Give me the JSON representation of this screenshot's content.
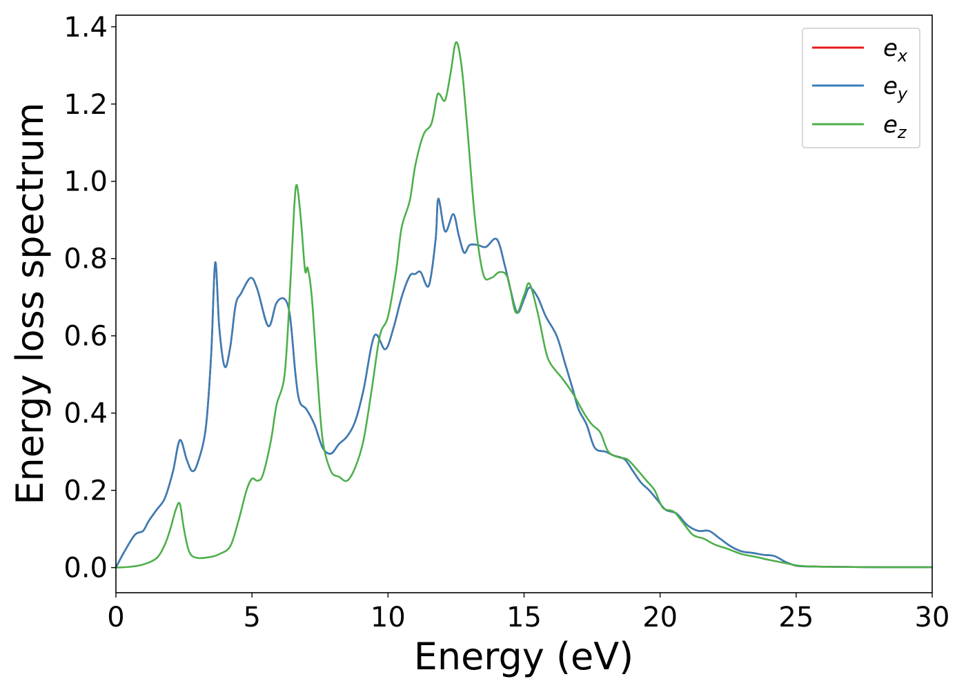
{
  "chart_data": {
    "type": "line",
    "title": "",
    "xlabel": "Energy (eV)",
    "ylabel": "Energy loss spectrum",
    "xlim": [
      0,
      30
    ],
    "ylim": [
      -0.065,
      1.43
    ],
    "xticks": [
      0,
      5,
      10,
      15,
      20,
      25,
      30
    ],
    "xtick_labels": [
      "0",
      "5",
      "10",
      "15",
      "20",
      "25",
      "30"
    ],
    "yticks": [
      0.0,
      0.2,
      0.4,
      0.6,
      0.8,
      1.0,
      1.2,
      1.4
    ],
    "ytick_labels": [
      "0.0",
      "0.2",
      "0.4",
      "0.6",
      "0.8",
      "1.0",
      "1.2",
      "1.4"
    ],
    "grid": false,
    "legend_position": "top-right",
    "series": [
      {
        "name": "e_x",
        "label_base": "e",
        "label_sub": "x",
        "color": "#e41a1c",
        "x": [
          0,
          0.3,
          0.7,
          1.0,
          1.2,
          1.5,
          1.8,
          2.1,
          2.35,
          2.6,
          2.8,
          3.0,
          3.3,
          3.5,
          3.65,
          3.8,
          4.0,
          4.2,
          4.4,
          4.6,
          4.95,
          5.2,
          5.6,
          5.9,
          6.2,
          6.4,
          6.6,
          6.75,
          7.0,
          7.3,
          7.6,
          7.9,
          8.2,
          8.5,
          8.8,
          9.1,
          9.5,
          9.9,
          10.2,
          10.5,
          10.8,
          11.0,
          11.2,
          11.5,
          11.75,
          11.85,
          12.1,
          12.4,
          12.6,
          12.8,
          13.0,
          13.3,
          13.6,
          14.0,
          14.3,
          14.5,
          14.75,
          15.0,
          15.2,
          15.5,
          15.8,
          16.2,
          16.5,
          16.8,
          17.0,
          17.3,
          17.6,
          18.0,
          18.3,
          18.7,
          19.0,
          19.3,
          19.6,
          19.9,
          20.2,
          20.6,
          21.0,
          21.4,
          21.8,
          22.2,
          22.6,
          23.0,
          23.4,
          23.8,
          24.2,
          24.6,
          25.0,
          25.5,
          26.5,
          28.0,
          30.0
        ],
        "y": [
          0.0,
          0.04,
          0.085,
          0.095,
          0.12,
          0.15,
          0.18,
          0.25,
          0.33,
          0.28,
          0.25,
          0.27,
          0.36,
          0.55,
          0.79,
          0.62,
          0.52,
          0.57,
          0.68,
          0.71,
          0.75,
          0.72,
          0.625,
          0.685,
          0.695,
          0.65,
          0.5,
          0.43,
          0.41,
          0.37,
          0.31,
          0.295,
          0.32,
          0.34,
          0.38,
          0.46,
          0.6,
          0.565,
          0.62,
          0.7,
          0.755,
          0.76,
          0.765,
          0.73,
          0.85,
          0.955,
          0.87,
          0.915,
          0.86,
          0.815,
          0.835,
          0.835,
          0.83,
          0.85,
          0.78,
          0.72,
          0.66,
          0.695,
          0.725,
          0.7,
          0.65,
          0.6,
          0.53,
          0.46,
          0.41,
          0.37,
          0.31,
          0.3,
          0.29,
          0.28,
          0.25,
          0.22,
          0.2,
          0.175,
          0.15,
          0.14,
          0.11,
          0.095,
          0.095,
          0.075,
          0.055,
          0.042,
          0.038,
          0.033,
          0.03,
          0.015,
          0.005,
          0.003,
          0.002,
          0.001,
          0.001
        ]
      },
      {
        "name": "e_y",
        "label_base": "e",
        "label_sub": "y",
        "color": "#377eb8",
        "x": [
          0,
          0.3,
          0.7,
          1.0,
          1.2,
          1.5,
          1.8,
          2.1,
          2.35,
          2.6,
          2.8,
          3.0,
          3.3,
          3.5,
          3.65,
          3.8,
          4.0,
          4.2,
          4.4,
          4.6,
          4.95,
          5.2,
          5.6,
          5.9,
          6.2,
          6.4,
          6.6,
          6.75,
          7.0,
          7.3,
          7.6,
          7.9,
          8.2,
          8.5,
          8.8,
          9.1,
          9.5,
          9.9,
          10.2,
          10.5,
          10.8,
          11.0,
          11.2,
          11.5,
          11.75,
          11.85,
          12.1,
          12.4,
          12.6,
          12.8,
          13.0,
          13.3,
          13.6,
          14.0,
          14.3,
          14.5,
          14.75,
          15.0,
          15.2,
          15.5,
          15.8,
          16.2,
          16.5,
          16.8,
          17.0,
          17.3,
          17.6,
          18.0,
          18.3,
          18.7,
          19.0,
          19.3,
          19.6,
          19.9,
          20.2,
          20.6,
          21.0,
          21.4,
          21.8,
          22.2,
          22.6,
          23.0,
          23.4,
          23.8,
          24.2,
          24.6,
          25.0,
          25.5,
          26.5,
          28.0,
          30.0
        ],
        "y": [
          0.0,
          0.04,
          0.085,
          0.095,
          0.12,
          0.15,
          0.18,
          0.25,
          0.33,
          0.28,
          0.25,
          0.27,
          0.36,
          0.55,
          0.79,
          0.62,
          0.52,
          0.57,
          0.68,
          0.71,
          0.75,
          0.72,
          0.625,
          0.685,
          0.695,
          0.65,
          0.5,
          0.43,
          0.41,
          0.37,
          0.31,
          0.295,
          0.32,
          0.34,
          0.38,
          0.46,
          0.6,
          0.565,
          0.62,
          0.7,
          0.755,
          0.76,
          0.765,
          0.73,
          0.85,
          0.955,
          0.87,
          0.915,
          0.86,
          0.815,
          0.835,
          0.835,
          0.83,
          0.85,
          0.78,
          0.72,
          0.66,
          0.695,
          0.725,
          0.7,
          0.65,
          0.6,
          0.53,
          0.46,
          0.41,
          0.37,
          0.31,
          0.3,
          0.29,
          0.28,
          0.25,
          0.22,
          0.2,
          0.175,
          0.15,
          0.14,
          0.11,
          0.095,
          0.095,
          0.075,
          0.055,
          0.042,
          0.038,
          0.033,
          0.03,
          0.015,
          0.005,
          0.003,
          0.002,
          0.001,
          0.001
        ]
      },
      {
        "name": "e_z",
        "label_base": "e",
        "label_sub": "z",
        "color": "#4daf4a",
        "x": [
          0,
          0.5,
          1.0,
          1.5,
          1.8,
          2.0,
          2.2,
          2.35,
          2.5,
          2.7,
          3.0,
          3.5,
          3.8,
          4.2,
          4.5,
          4.8,
          5.0,
          5.2,
          5.4,
          5.7,
          5.9,
          6.2,
          6.4,
          6.55,
          6.65,
          6.8,
          6.95,
          7.05,
          7.2,
          7.4,
          7.6,
          7.9,
          8.2,
          8.5,
          8.8,
          9.1,
          9.4,
          9.7,
          10.0,
          10.3,
          10.5,
          10.8,
          11.0,
          11.3,
          11.6,
          11.8,
          11.9,
          12.1,
          12.3,
          12.5,
          12.7,
          12.9,
          13.2,
          13.5,
          13.8,
          14.1,
          14.4,
          14.7,
          15.0,
          15.2,
          15.5,
          15.8,
          16.0,
          16.4,
          16.8,
          17.2,
          17.5,
          17.8,
          18.1,
          18.5,
          18.8,
          19.2,
          19.5,
          19.8,
          20.1,
          20.5,
          20.8,
          21.2,
          21.6,
          22.0,
          22.5,
          23.0,
          23.5,
          24.0,
          24.5,
          25.0,
          25.5,
          26.5,
          28.0,
          30.0
        ],
        "y": [
          0.0,
          0.002,
          0.008,
          0.025,
          0.06,
          0.1,
          0.15,
          0.165,
          0.1,
          0.04,
          0.025,
          0.028,
          0.035,
          0.055,
          0.12,
          0.2,
          0.23,
          0.225,
          0.24,
          0.33,
          0.42,
          0.5,
          0.72,
          0.93,
          0.99,
          0.9,
          0.77,
          0.775,
          0.7,
          0.5,
          0.33,
          0.25,
          0.235,
          0.225,
          0.26,
          0.33,
          0.46,
          0.6,
          0.65,
          0.77,
          0.88,
          0.95,
          1.04,
          1.12,
          1.15,
          1.22,
          1.225,
          1.21,
          1.28,
          1.36,
          1.3,
          1.15,
          0.9,
          0.76,
          0.75,
          0.765,
          0.75,
          0.66,
          0.705,
          0.735,
          0.66,
          0.56,
          0.525,
          0.49,
          0.45,
          0.4,
          0.37,
          0.35,
          0.3,
          0.285,
          0.28,
          0.25,
          0.225,
          0.2,
          0.155,
          0.145,
          0.12,
          0.085,
          0.075,
          0.06,
          0.048,
          0.035,
          0.028,
          0.02,
          0.013,
          0.006,
          0.003,
          0.002,
          0.001,
          0.001
        ]
      }
    ]
  }
}
